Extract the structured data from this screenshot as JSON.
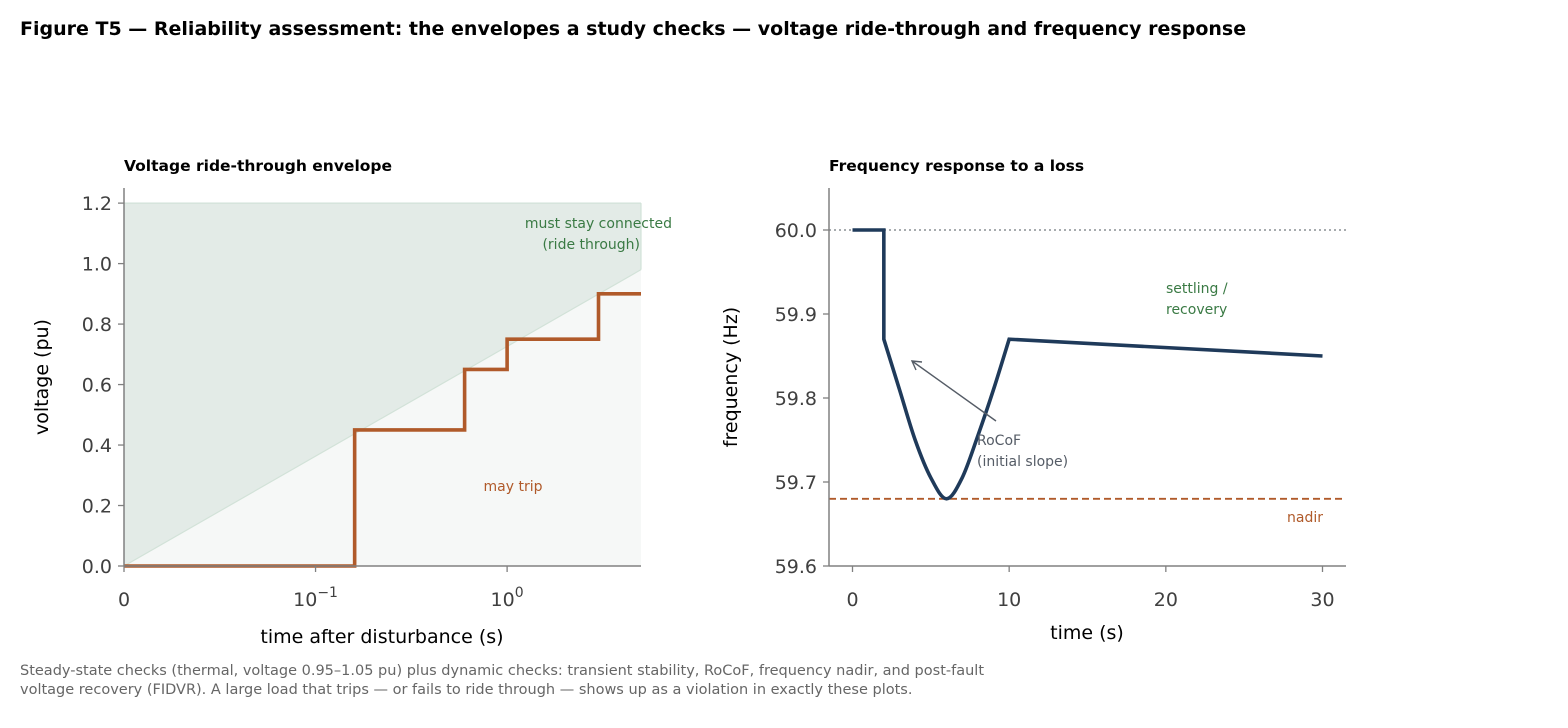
{
  "figure": {
    "title": "Figure T5 — Reliability assessment: the envelopes a study checks — voltage ride-through and frequency response",
    "caption_line1": "Steady-state checks (thermal, voltage 0.95–1.05 pu) plus dynamic checks: transient stability, RoCoF, frequency nadir, and post-fault",
    "caption_line2": "voltage recovery (FIDVR). A large load that trips — or fails to ride through — shows up as a violation in exactly these plots."
  },
  "colors": {
    "step": "#b05a2a",
    "connected_fill": "#e3ebe7",
    "trip_fill": "#f6f8f7",
    "freq_line": "#1f3a5a",
    "nadir": "#b05a2a",
    "green_text": "#3a7a44",
    "annot_gray": "#555c66",
    "axis": "#808080",
    "tick_text": "#404040"
  },
  "chart_data": [
    {
      "type": "line",
      "title": "Voltage ride-through envelope",
      "xlabel": "time after disturbance (s)",
      "ylabel": "voltage (pu)",
      "xscale": "symlog",
      "xlim": [
        0,
        5
      ],
      "ylim": [
        0,
        1.25
      ],
      "x_ticks": [
        0,
        0.1,
        1
      ],
      "y_ticks": [
        0.0,
        0.2,
        0.4,
        0.6,
        0.8,
        1.0,
        1.2
      ],
      "series": [
        {
          "kind": "step",
          "x": [
            0,
            0.16,
            0.16,
            0.6,
            0.6,
            1.0,
            1.0,
            3.0,
            3.0,
            5.0
          ],
          "y": [
            0.0,
            0.0,
            0.45,
            0.45,
            0.65,
            0.65,
            0.75,
            0.75,
            0.9,
            0.9
          ]
        }
      ],
      "regions": [
        {
          "label": "must stay connected\n(ride through)",
          "upper": 1.2
        },
        {
          "label": "may trip"
        }
      ],
      "annotations": [
        {
          "text": "must stay connected",
          "x": 5,
          "y": 1.13
        },
        {
          "text": "(ride through)",
          "x": 5,
          "y": 1.06
        },
        {
          "text": "may trip",
          "x": 0.7,
          "y": 0.26
        }
      ]
    },
    {
      "type": "line",
      "title": "Frequency response to a loss",
      "xlabel": "time (s)",
      "ylabel": "frequency (Hz)",
      "xlim": [
        -1.5,
        31.5
      ],
      "ylim": [
        59.6,
        60.05
      ],
      "x_ticks": [
        0,
        10,
        20,
        30
      ],
      "y_ticks": [
        59.6,
        59.7,
        59.8,
        59.9,
        60.0
      ],
      "nominal": 60.0,
      "nadir": 59.68,
      "series": [
        {
          "x": [
            0,
            2,
            2,
            3,
            4,
            5,
            6,
            7,
            8,
            9,
            10,
            30
          ],
          "y": [
            60.0,
            60.0,
            59.87,
            59.81,
            59.75,
            59.705,
            59.68,
            59.705,
            59.755,
            59.81,
            59.87,
            59.85
          ]
        }
      ],
      "annotations": [
        {
          "text": "settling /",
          "x": 20,
          "y": 59.92
        },
        {
          "text": "recovery",
          "x": 20,
          "y": 59.895
        },
        {
          "text": "RoCoF",
          "x": 8,
          "y": 59.75
        },
        {
          "text": "(initial slope)",
          "x": 8,
          "y": 59.725
        },
        {
          "text": "nadir",
          "x": 30,
          "y": 59.66
        }
      ]
    }
  ]
}
